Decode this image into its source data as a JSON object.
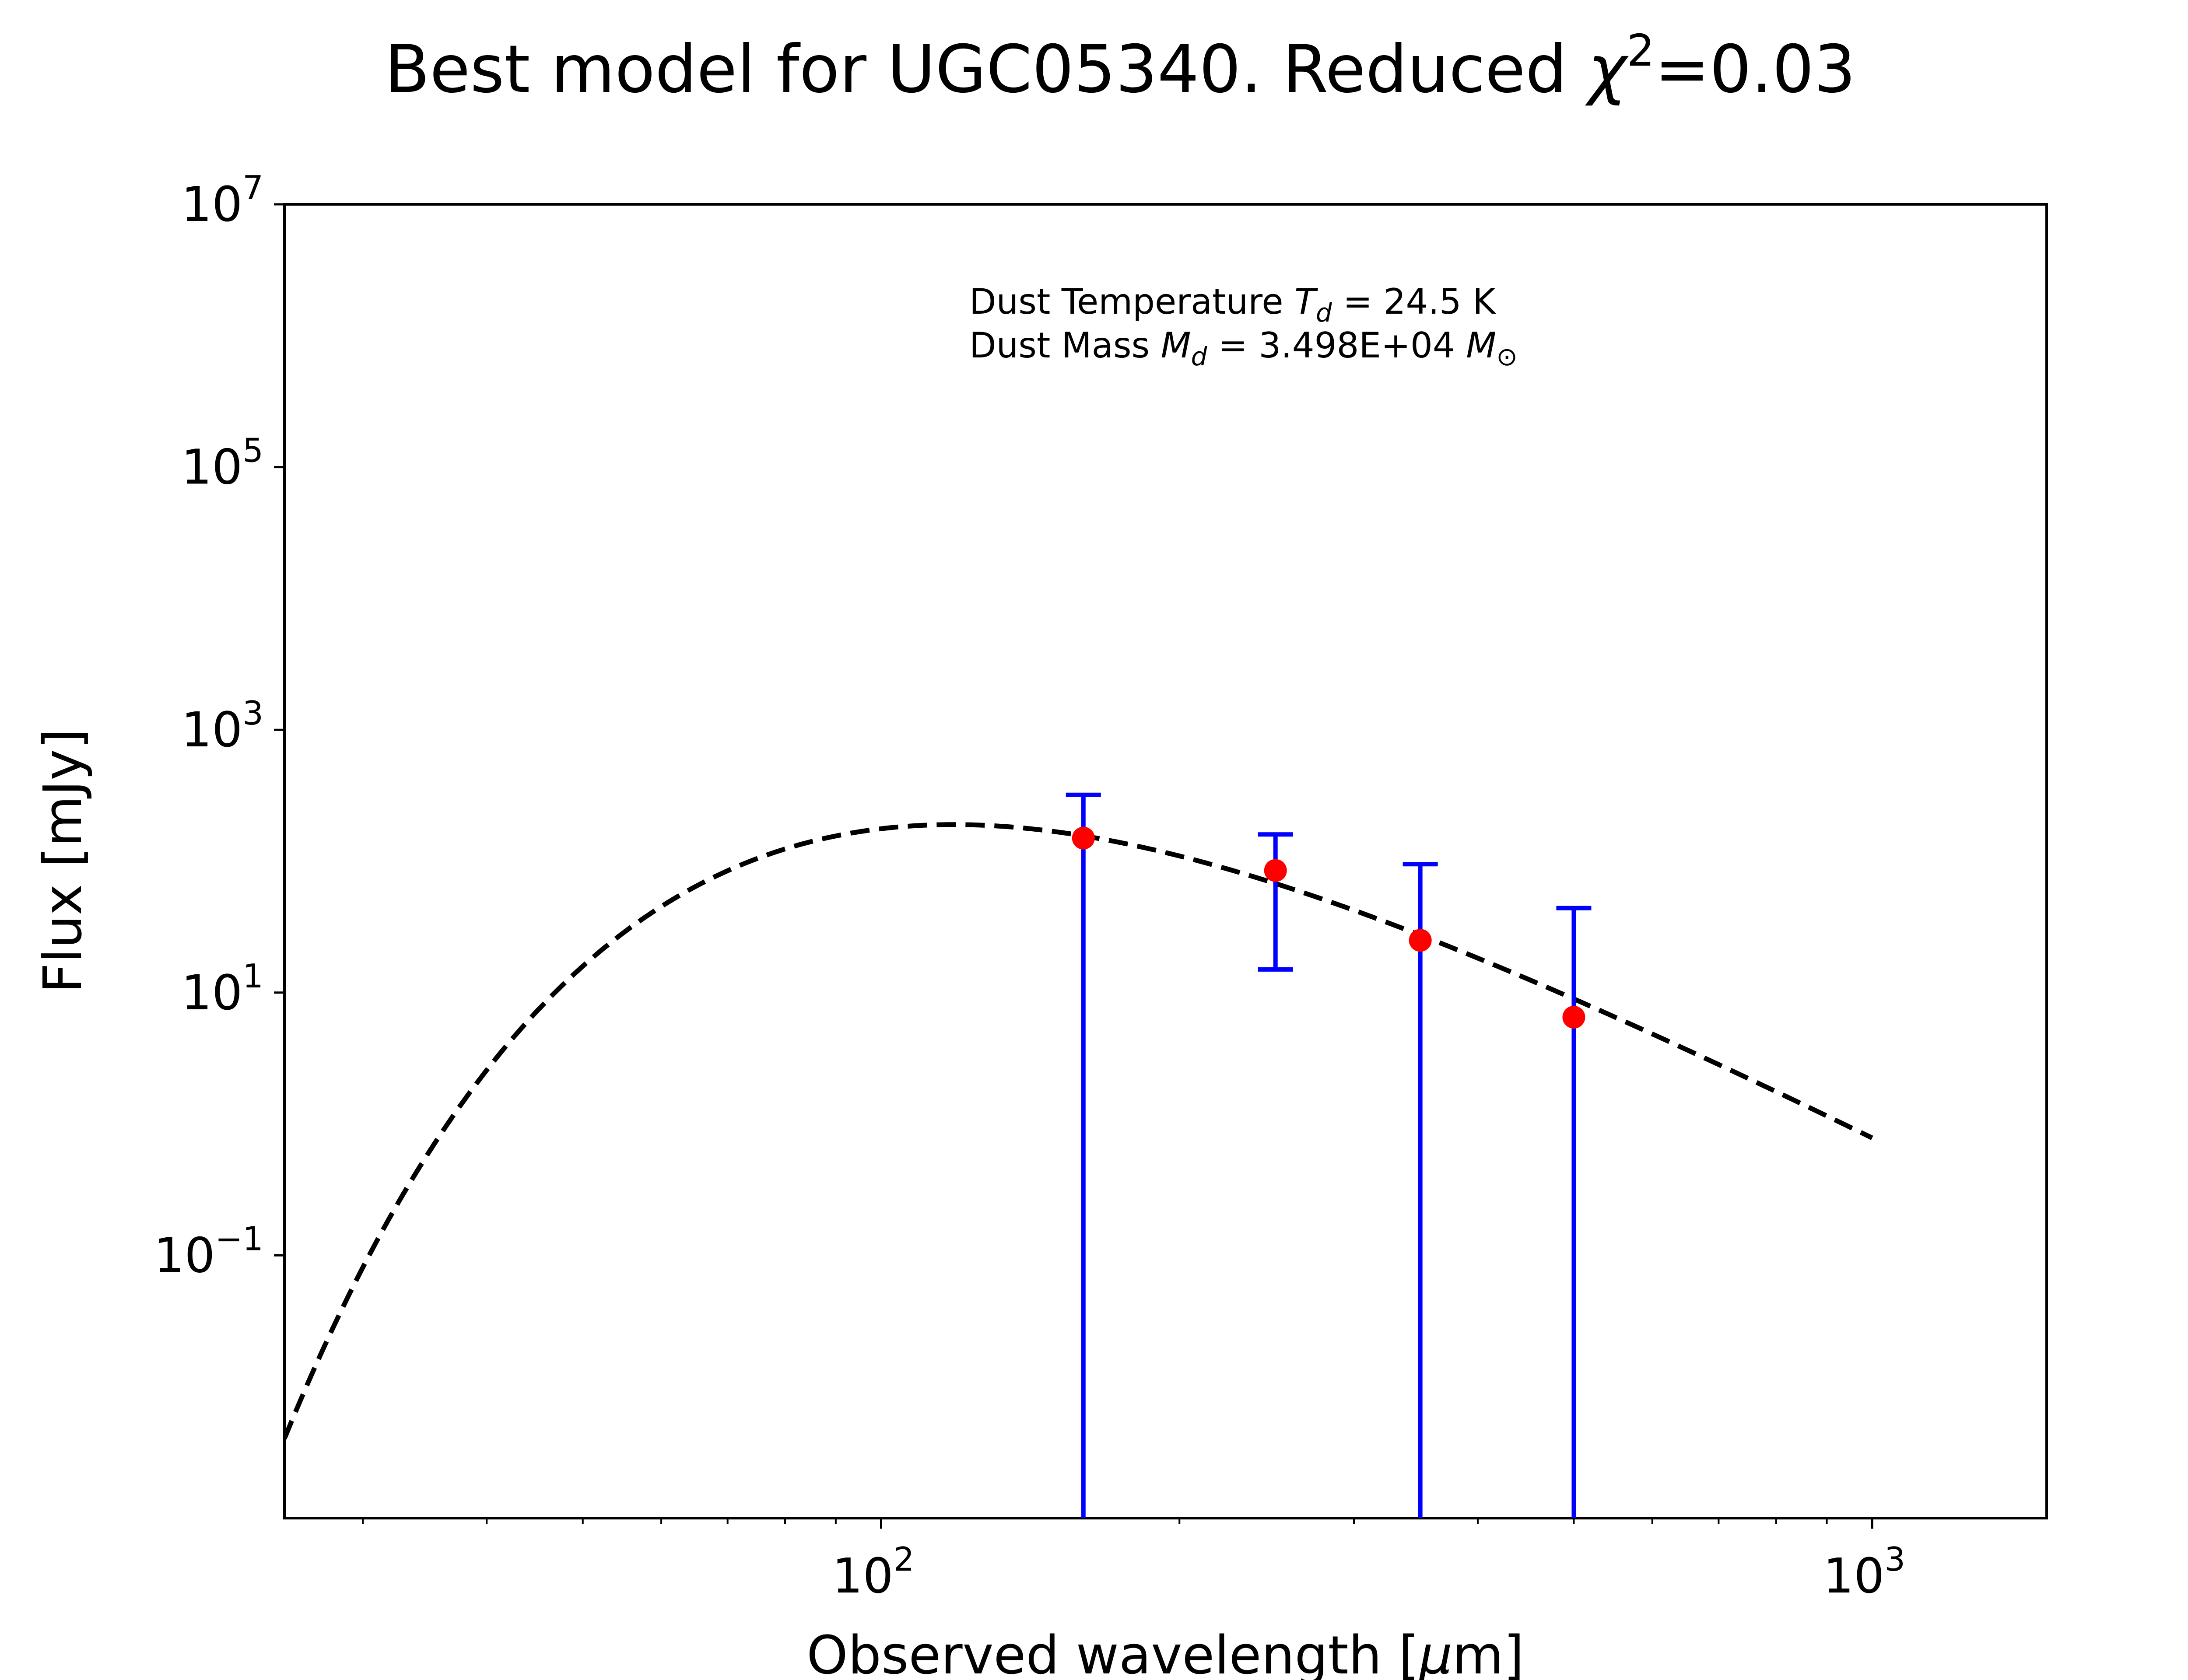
{
  "chart_data": {
    "type": "scatter",
    "title_main": "Best model for UGC05340. Reduced ",
    "title_chi": "χ",
    "title_exp": "2",
    "title_value": "=0.03",
    "xlabel_prefix": "Observed wavelength [",
    "xlabel_mu": "μ",
    "xlabel_suffix": "m]",
    "ylabel": "Flux [mJy]",
    "x_scale": "log",
    "y_scale": "log",
    "xlim": [
      25,
      1500
    ],
    "ylim": [
      0.001,
      10000000
    ],
    "x_ticks": [
      {
        "value": 100,
        "base": "10",
        "exp": "2"
      },
      {
        "value": 1000,
        "base": "10",
        "exp": "3"
      }
    ],
    "y_ticks": [
      {
        "value": 10000000,
        "base": "10",
        "exp": "7"
      },
      {
        "value": 100000,
        "base": "10",
        "exp": "5"
      },
      {
        "value": 1000,
        "base": "10",
        "exp": "3"
      },
      {
        "value": 10,
        "base": "10",
        "exp": "1"
      },
      {
        "value": 0.1,
        "base": "10",
        "exp": "−1"
      }
    ],
    "annotation": {
      "line1_prefix": "Dust Temperature ",
      "line1_var": "T",
      "line1_sub": "d",
      "line1_value": " = 24.5 K",
      "line2_prefix": "Dust Mass ",
      "line2_var": "M",
      "line2_sub": "d",
      "line2_value": " = 3.498E+04 ",
      "line2_unit_var": "M",
      "line2_unit_sub": "⊙"
    },
    "model_curve": {
      "style": "dashed",
      "color": "#000000",
      "temperature_K": 24.5,
      "peak_flux": 190,
      "x_range": [
        25,
        1000
      ]
    },
    "observations": {
      "x": [
        160,
        250,
        350,
        500
      ],
      "y": [
        150,
        85,
        25,
        6.5
      ],
      "yerr_low": [
        0.001,
        15,
        0.001,
        0.001
      ],
      "yerr_high": [
        320,
        160,
        95,
        44
      ],
      "point_color": "#ff0000",
      "error_color": "#0000ff"
    },
    "grid": false,
    "legend": "none"
  }
}
